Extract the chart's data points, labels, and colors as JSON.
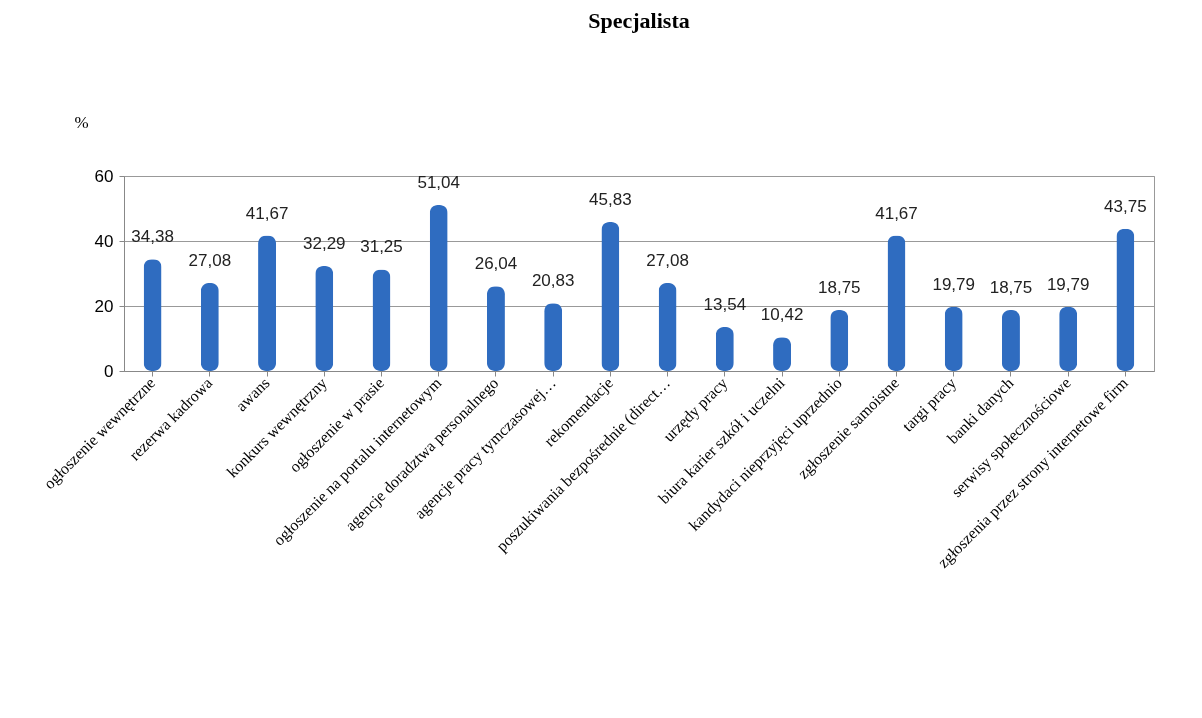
{
  "chart_data": {
    "type": "bar",
    "title": "Specjalista",
    "ylabel": "%",
    "categories": [
      "ogłoszenie wewnętrzne",
      "rezerwa kadrowa",
      "awans",
      "konkurs wewnętrzny",
      "ogłoszenie w  prasie",
      "ogłoszenie na portalu internetowym",
      "agencje doradztwa personalnego",
      "agencje pracy tymczasowej…",
      "rekomendacje",
      "poszukiwania bezpośrednie (direct…",
      "urzędy pracy",
      "biura karier szkół i uczelni",
      "kandydaci nieprzyjęci uprzednio",
      "zgłoszenie samoistne",
      "targi pracy",
      "banki danych",
      "serwisy  społecznościowe",
      "zgłoszenia przez strony internetowe firm"
    ],
    "values": [
      34.38,
      27.08,
      41.67,
      32.29,
      31.25,
      51.04,
      26.04,
      20.83,
      45.83,
      27.08,
      13.54,
      10.42,
      18.75,
      41.67,
      19.79,
      18.75,
      19.79,
      43.75
    ],
    "value_labels": [
      "34,38",
      "27,08",
      "41,67",
      "32,29",
      "31,25",
      "51,04",
      "26,04",
      "20,83",
      "45,83",
      "27,08",
      "13,54",
      "10,42",
      "18,75",
      "41,67",
      "19,79",
      "18,75",
      "19,79",
      "43,75"
    ],
    "color": "#2f6cc0",
    "ylim": [
      0,
      60
    ],
    "yticks": [
      0,
      20,
      40,
      60
    ],
    "grid": "y"
  }
}
